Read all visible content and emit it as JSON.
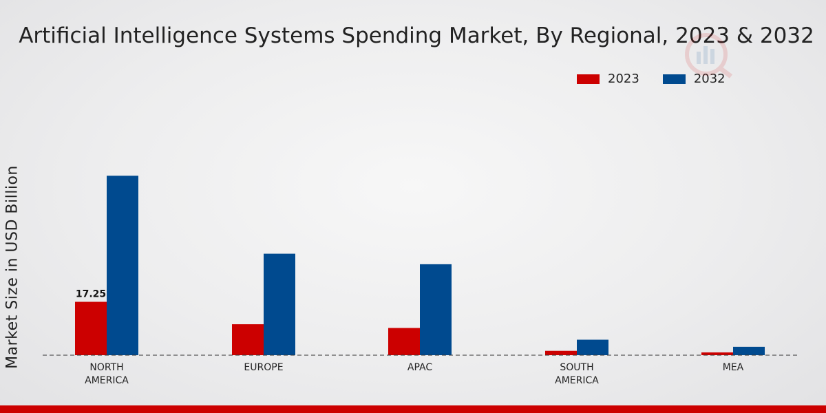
{
  "chart_data": {
    "type": "bar",
    "title": "Artificial Intelligence Systems Spending Market, By Regional, 2023 & 2032",
    "ylabel": "Market Size in USD Billion",
    "xlabel": "",
    "categories": [
      "NORTH\nAMERICA",
      "EUROPE",
      "APAC",
      "SOUTH\nAMERICA",
      "MEA"
    ],
    "series": [
      {
        "name": "2023",
        "color": "#cc0000",
        "values": [
          17.25,
          10.0,
          8.8,
          1.4,
          0.9
        ]
      },
      {
        "name": "2032",
        "color": "#004a8f",
        "values": [
          58.0,
          32.8,
          29.4,
          5.0,
          2.7
        ]
      }
    ],
    "data_labels": [
      {
        "series": 0,
        "category": 0,
        "text": "17.25"
      }
    ],
    "ylim": [
      0,
      85
    ],
    "legend_position": "top-right",
    "grid": false
  }
}
